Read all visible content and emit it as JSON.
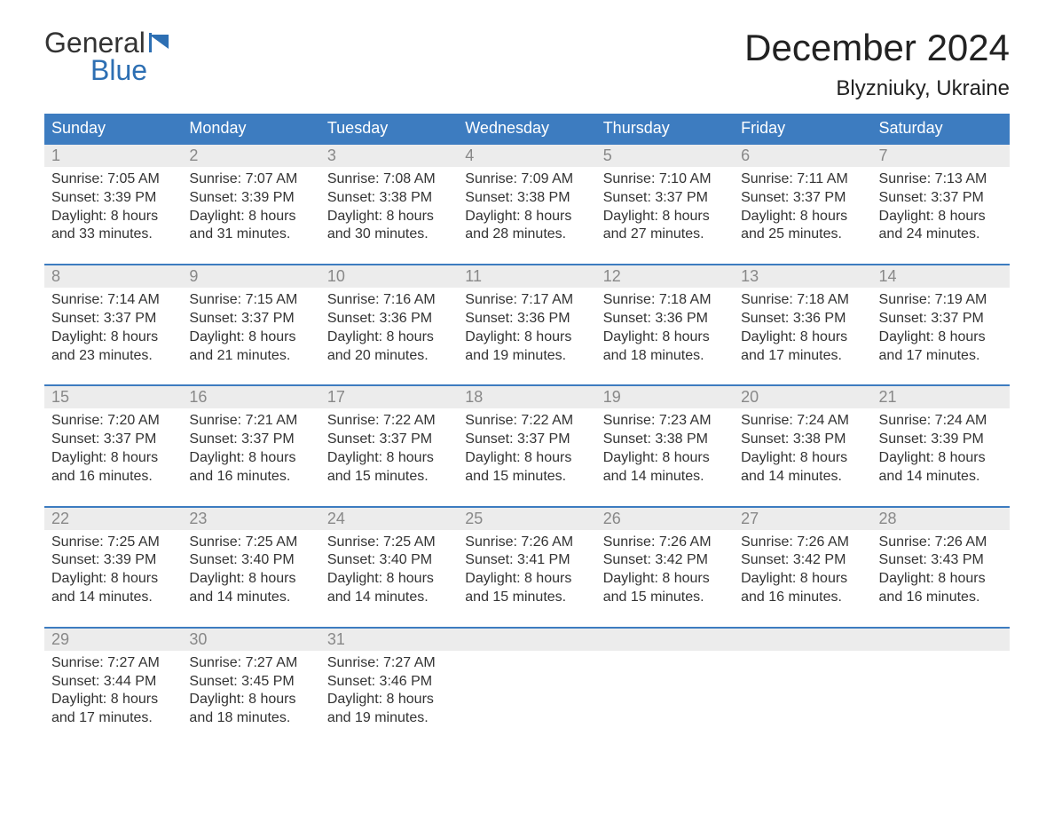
{
  "logo": {
    "text1": "General",
    "text2": "Blue",
    "flag_color": "#2d6fb3"
  },
  "title": "December 2024",
  "location": "Blyzniuky, Ukraine",
  "colors": {
    "header_bg": "#3d7cc0",
    "header_text": "#ffffff",
    "daynum_bg": "#ececec",
    "daynum_text": "#888888",
    "body_text": "#333333",
    "week_border": "#3d7cc0",
    "page_bg": "#ffffff"
  },
  "fonts": {
    "title_size": 42,
    "location_size": 24,
    "header_size": 18,
    "daynum_size": 18,
    "body_size": 16
  },
  "day_headers": [
    "Sunday",
    "Monday",
    "Tuesday",
    "Wednesday",
    "Thursday",
    "Friday",
    "Saturday"
  ],
  "weeks": [
    [
      {
        "n": "1",
        "sr": "7:05 AM",
        "ss": "3:39 PM",
        "dl1": "Daylight: 8 hours",
        "dl2": "and 33 minutes."
      },
      {
        "n": "2",
        "sr": "7:07 AM",
        "ss": "3:39 PM",
        "dl1": "Daylight: 8 hours",
        "dl2": "and 31 minutes."
      },
      {
        "n": "3",
        "sr": "7:08 AM",
        "ss": "3:38 PM",
        "dl1": "Daylight: 8 hours",
        "dl2": "and 30 minutes."
      },
      {
        "n": "4",
        "sr": "7:09 AM",
        "ss": "3:38 PM",
        "dl1": "Daylight: 8 hours",
        "dl2": "and 28 minutes."
      },
      {
        "n": "5",
        "sr": "7:10 AM",
        "ss": "3:37 PM",
        "dl1": "Daylight: 8 hours",
        "dl2": "and 27 minutes."
      },
      {
        "n": "6",
        "sr": "7:11 AM",
        "ss": "3:37 PM",
        "dl1": "Daylight: 8 hours",
        "dl2": "and 25 minutes."
      },
      {
        "n": "7",
        "sr": "7:13 AM",
        "ss": "3:37 PM",
        "dl1": "Daylight: 8 hours",
        "dl2": "and 24 minutes."
      }
    ],
    [
      {
        "n": "8",
        "sr": "7:14 AM",
        "ss": "3:37 PM",
        "dl1": "Daylight: 8 hours",
        "dl2": "and 23 minutes."
      },
      {
        "n": "9",
        "sr": "7:15 AM",
        "ss": "3:37 PM",
        "dl1": "Daylight: 8 hours",
        "dl2": "and 21 minutes."
      },
      {
        "n": "10",
        "sr": "7:16 AM",
        "ss": "3:36 PM",
        "dl1": "Daylight: 8 hours",
        "dl2": "and 20 minutes."
      },
      {
        "n": "11",
        "sr": "7:17 AM",
        "ss": "3:36 PM",
        "dl1": "Daylight: 8 hours",
        "dl2": "and 19 minutes."
      },
      {
        "n": "12",
        "sr": "7:18 AM",
        "ss": "3:36 PM",
        "dl1": "Daylight: 8 hours",
        "dl2": "and 18 minutes."
      },
      {
        "n": "13",
        "sr": "7:18 AM",
        "ss": "3:36 PM",
        "dl1": "Daylight: 8 hours",
        "dl2": "and 17 minutes."
      },
      {
        "n": "14",
        "sr": "7:19 AM",
        "ss": "3:37 PM",
        "dl1": "Daylight: 8 hours",
        "dl2": "and 17 minutes."
      }
    ],
    [
      {
        "n": "15",
        "sr": "7:20 AM",
        "ss": "3:37 PM",
        "dl1": "Daylight: 8 hours",
        "dl2": "and 16 minutes."
      },
      {
        "n": "16",
        "sr": "7:21 AM",
        "ss": "3:37 PM",
        "dl1": "Daylight: 8 hours",
        "dl2": "and 16 minutes."
      },
      {
        "n": "17",
        "sr": "7:22 AM",
        "ss": "3:37 PM",
        "dl1": "Daylight: 8 hours",
        "dl2": "and 15 minutes."
      },
      {
        "n": "18",
        "sr": "7:22 AM",
        "ss": "3:37 PM",
        "dl1": "Daylight: 8 hours",
        "dl2": "and 15 minutes."
      },
      {
        "n": "19",
        "sr": "7:23 AM",
        "ss": "3:38 PM",
        "dl1": "Daylight: 8 hours",
        "dl2": "and 14 minutes."
      },
      {
        "n": "20",
        "sr": "7:24 AM",
        "ss": "3:38 PM",
        "dl1": "Daylight: 8 hours",
        "dl2": "and 14 minutes."
      },
      {
        "n": "21",
        "sr": "7:24 AM",
        "ss": "3:39 PM",
        "dl1": "Daylight: 8 hours",
        "dl2": "and 14 minutes."
      }
    ],
    [
      {
        "n": "22",
        "sr": "7:25 AM",
        "ss": "3:39 PM",
        "dl1": "Daylight: 8 hours",
        "dl2": "and 14 minutes."
      },
      {
        "n": "23",
        "sr": "7:25 AM",
        "ss": "3:40 PM",
        "dl1": "Daylight: 8 hours",
        "dl2": "and 14 minutes."
      },
      {
        "n": "24",
        "sr": "7:25 AM",
        "ss": "3:40 PM",
        "dl1": "Daylight: 8 hours",
        "dl2": "and 14 minutes."
      },
      {
        "n": "25",
        "sr": "7:26 AM",
        "ss": "3:41 PM",
        "dl1": "Daylight: 8 hours",
        "dl2": "and 15 minutes."
      },
      {
        "n": "26",
        "sr": "7:26 AM",
        "ss": "3:42 PM",
        "dl1": "Daylight: 8 hours",
        "dl2": "and 15 minutes."
      },
      {
        "n": "27",
        "sr": "7:26 AM",
        "ss": "3:42 PM",
        "dl1": "Daylight: 8 hours",
        "dl2": "and 16 minutes."
      },
      {
        "n": "28",
        "sr": "7:26 AM",
        "ss": "3:43 PM",
        "dl1": "Daylight: 8 hours",
        "dl2": "and 16 minutes."
      }
    ],
    [
      {
        "n": "29",
        "sr": "7:27 AM",
        "ss": "3:44 PM",
        "dl1": "Daylight: 8 hours",
        "dl2": "and 17 minutes."
      },
      {
        "n": "30",
        "sr": "7:27 AM",
        "ss": "3:45 PM",
        "dl1": "Daylight: 8 hours",
        "dl2": "and 18 minutes."
      },
      {
        "n": "31",
        "sr": "7:27 AM",
        "ss": "3:46 PM",
        "dl1": "Daylight: 8 hours",
        "dl2": "and 19 minutes."
      },
      null,
      null,
      null,
      null
    ]
  ],
  "labels": {
    "sunrise_prefix": "Sunrise: ",
    "sunset_prefix": "Sunset: "
  }
}
